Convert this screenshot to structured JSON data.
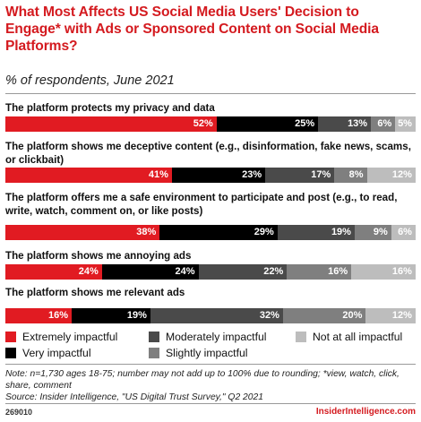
{
  "chart_data": {
    "type": "bar",
    "orientation": "horizontal-stacked",
    "title": "What Most Affects US Social Media Users' Decision to Engage* with Ads or Sponsored Content on Social Media Platforms?",
    "subtitle": "% of respondents, June 2021",
    "categories": [
      "The platform protects my privacy and data",
      "The platform shows me deceptive content (e.g., disinformation, fake news, scams, or clickbait)",
      "The platform offers me a safe environment to participate and post (e.g., to read, write, watch, comment on, or like posts)",
      "The platform shows me annoying ads",
      "The platform shows me relevant ads"
    ],
    "series": [
      {
        "name": "Extremely impactful",
        "color": "#e11b22",
        "text_color": "#ffffff",
        "values": [
          52,
          41,
          38,
          24,
          16
        ]
      },
      {
        "name": "Very impactful",
        "color": "#000000",
        "text_color": "#ffffff",
        "values": [
          25,
          23,
          29,
          24,
          19
        ]
      },
      {
        "name": "Moderately impactful",
        "color": "#4a4a4a",
        "text_color": "#ffffff",
        "values": [
          13,
          17,
          19,
          22,
          32
        ]
      },
      {
        "name": "Slightly impactful",
        "color": "#7f7f7f",
        "text_color": "#ffffff",
        "values": [
          6,
          8,
          9,
          16,
          20
        ]
      },
      {
        "name": "Not at all impactful",
        "color": "#bdbdbd",
        "text_color": "#ffffff",
        "values": [
          5,
          12,
          6,
          16,
          12
        ]
      }
    ],
    "value_suffix": "%",
    "legend": "bottom"
  },
  "note": "Note: n=1,730 ages 18-75; number may not add up to 100% due to rounding; *view, watch, click, share, comment",
  "source": "Source: Insider Intelligence, \"US Digital Trust Survey,\" Q2 2021",
  "footer": {
    "chart_id": "269010",
    "brand": "InsiderIntelligence.com"
  }
}
